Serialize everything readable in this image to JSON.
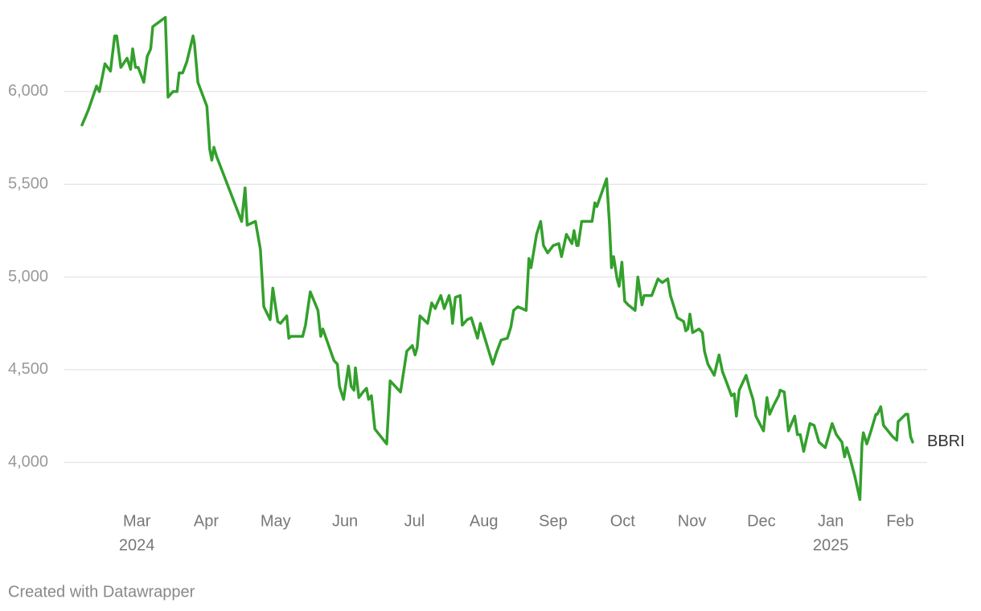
{
  "chart_data": {
    "type": "line",
    "x": [
      2.21,
      2.3,
      2.42,
      2.46,
      2.54,
      2.62,
      2.68,
      2.71,
      2.77,
      2.86,
      2.91,
      2.94,
      2.98,
      3.02,
      3.1,
      3.15,
      3.2,
      3.23,
      3.41,
      3.45,
      3.52,
      3.58,
      3.61,
      3.66,
      3.72,
      3.81,
      3.83,
      3.88,
      4.01,
      4.05,
      4.08,
      4.11,
      4.15,
      4.51,
      4.56,
      4.59,
      4.71,
      4.78,
      4.83,
      4.92,
      4.96,
      5.03,
      5.07,
      5.16,
      5.19,
      5.22,
      5.39,
      5.43,
      5.46,
      5.5,
      5.61,
      5.65,
      5.68,
      5.84,
      5.89,
      5.92,
      5.98,
      6.05,
      6.09,
      6.13,
      6.15,
      6.2,
      6.26,
      6.31,
      6.34,
      6.38,
      6.43,
      6.6,
      6.65,
      6.8,
      6.89,
      6.97,
      7.01,
      7.04,
      7.08,
      7.19,
      7.25,
      7.3,
      7.32,
      7.38,
      7.43,
      7.5,
      7.53,
      7.55,
      7.59,
      7.66,
      7.69,
      7.76,
      7.82,
      7.91,
      7.95,
      8.08,
      8.13,
      8.18,
      8.25,
      8.34,
      8.39,
      8.43,
      8.49,
      8.61,
      8.65,
      8.68,
      8.76,
      8.82,
      8.86,
      8.92,
      9.0,
      9.08,
      9.12,
      9.19,
      9.27,
      9.3,
      9.34,
      9.36,
      9.41,
      9.56,
      9.6,
      9.63,
      9.77,
      9.81,
      9.84,
      9.87,
      9.92,
      9.95,
      9.99,
      10.03,
      10.08,
      10.18,
      10.22,
      10.28,
      10.31,
      10.42,
      10.51,
      10.57,
      10.65,
      10.69,
      10.79,
      10.88,
      10.91,
      10.94,
      10.97,
      11.01,
      11.1,
      11.15,
      11.18,
      11.23,
      11.32,
      11.39,
      11.44,
      11.48,
      11.57,
      11.61,
      11.64,
      11.68,
      11.78,
      11.83,
      11.88,
      11.92,
      12.03,
      12.08,
      12.12,
      12.18,
      12.25,
      12.27,
      12.33,
      12.39,
      12.48,
      12.52,
      12.56,
      12.61,
      12.7,
      12.76,
      12.83,
      12.92,
      13.02,
      13.08,
      13.16,
      13.2,
      13.23,
      13.28,
      13.35,
      13.42,
      13.45,
      13.47,
      13.52,
      13.58,
      13.65,
      13.67,
      13.72,
      13.76,
      13.89,
      13.95,
      13.97,
      14.08,
      14.11,
      14.15,
      14.18
    ],
    "series": [
      {
        "name": "BBRI",
        "color": "#33a02c",
        "values": [
          5820,
          5900,
          6030,
          6000,
          6150,
          6110,
          6300,
          6300,
          6130,
          6180,
          6120,
          6230,
          6130,
          6130,
          6050,
          6190,
          6230,
          6350,
          6400,
          5970,
          6000,
          6000,
          6100,
          6100,
          6160,
          6300,
          6260,
          6050,
          5920,
          5690,
          5630,
          5700,
          5650,
          5300,
          5480,
          5280,
          5300,
          5150,
          4840,
          4770,
          4940,
          4760,
          4750,
          4790,
          4670,
          4680,
          4680,
          4740,
          4820,
          4920,
          4820,
          4680,
          4720,
          4550,
          4530,
          4410,
          4340,
          4520,
          4410,
          4390,
          4510,
          4350,
          4380,
          4400,
          4340,
          4360,
          4180,
          4100,
          4440,
          4380,
          4600,
          4630,
          4580,
          4620,
          4790,
          4750,
          4860,
          4830,
          4850,
          4900,
          4830,
          4900,
          4840,
          4750,
          4890,
          4900,
          4740,
          4770,
          4780,
          4670,
          4750,
          4590,
          4530,
          4590,
          4660,
          4670,
          4730,
          4820,
          4840,
          4820,
          5100,
          5050,
          5230,
          5300,
          5170,
          5130,
          5170,
          5180,
          5110,
          5230,
          5180,
          5250,
          5170,
          5170,
          5300,
          5300,
          5400,
          5380,
          5530,
          5290,
          5050,
          5110,
          4990,
          4950,
          5080,
          4870,
          4850,
          4820,
          5000,
          4850,
          4900,
          4900,
          4990,
          4970,
          4990,
          4900,
          4780,
          4760,
          4710,
          4720,
          4800,
          4700,
          4720,
          4700,
          4600,
          4530,
          4470,
          4580,
          4490,
          4450,
          4360,
          4370,
          4250,
          4390,
          4470,
          4400,
          4340,
          4250,
          4170,
          4350,
          4260,
          4310,
          4360,
          4390,
          4380,
          4170,
          4250,
          4150,
          4150,
          4060,
          4210,
          4200,
          4110,
          4080,
          4210,
          4150,
          4110,
          4030,
          4080,
          4020,
          3920,
          3800,
          4100,
          4160,
          4100,
          4170,
          4260,
          4260,
          4300,
          4200,
          4140,
          4120,
          4220,
          4260,
          4260,
          4140,
          4110
        ]
      }
    ],
    "xlim": [
      2.21,
      14.18
    ],
    "xticks": [
      {
        "value": 3,
        "label": "Mar"
      },
      {
        "value": 4,
        "label": "Apr"
      },
      {
        "value": 5,
        "label": "May"
      },
      {
        "value": 6,
        "label": "Jun"
      },
      {
        "value": 7,
        "label": "Jul"
      },
      {
        "value": 8,
        "label": "Aug"
      },
      {
        "value": 9,
        "label": "Sep"
      },
      {
        "value": 10,
        "label": "Oct"
      },
      {
        "value": 11,
        "label": "Nov"
      },
      {
        "value": 12,
        "label": "Dec"
      },
      {
        "value": 13,
        "label": "Jan"
      },
      {
        "value": 14,
        "label": "Feb"
      }
    ],
    "x_year_labels": [
      {
        "value": 3,
        "label": "2024"
      },
      {
        "value": 13,
        "label": "2025"
      }
    ],
    "ylim": [
      3780,
      6420
    ],
    "yticks": [
      {
        "value": 4000,
        "label": "4,000"
      },
      {
        "value": 4500,
        "label": "4,500"
      },
      {
        "value": 5000,
        "label": "5,000"
      },
      {
        "value": 5500,
        "label": "5,500"
      },
      {
        "value": 6000,
        "label": "6,000"
      }
    ],
    "grid": true,
    "credit": "Created with Datawrapper"
  }
}
